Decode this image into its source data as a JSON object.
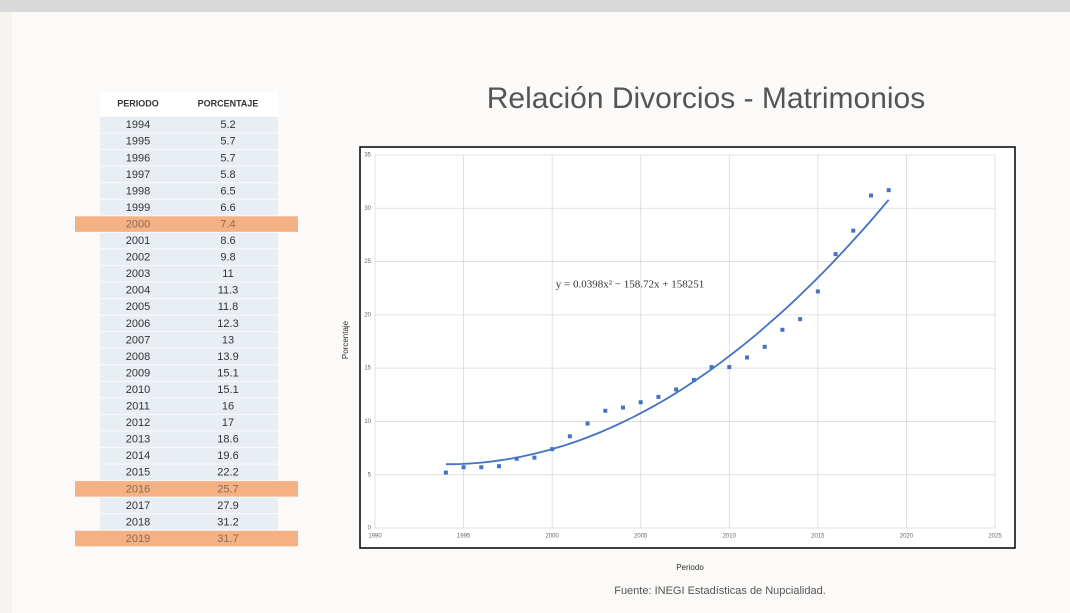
{
  "table": {
    "header": [
      "PERIODO",
      "PORCENTAJE"
    ],
    "rows": [
      [
        "1994",
        "5.2"
      ],
      [
        "1995",
        "5.7"
      ],
      [
        "1996",
        "5.7"
      ],
      [
        "1997",
        "5.8"
      ],
      [
        "1998",
        "6.5"
      ],
      [
        "1999",
        "6.6"
      ],
      [
        "2000",
        "7.4"
      ],
      [
        "2001",
        "8.6"
      ],
      [
        "2002",
        "9.8"
      ],
      [
        "2003",
        "11"
      ],
      [
        "2004",
        "11.3"
      ],
      [
        "2005",
        "11.8"
      ],
      [
        "2006",
        "12.3"
      ],
      [
        "2007",
        "13"
      ],
      [
        "2008",
        "13.9"
      ],
      [
        "2009",
        "15.1"
      ],
      [
        "2010",
        "15.1"
      ],
      [
        "2011",
        "16"
      ],
      [
        "2012",
        "17"
      ],
      [
        "2013",
        "18.6"
      ],
      [
        "2014",
        "19.6"
      ],
      [
        "2015",
        "22.2"
      ],
      [
        "2016",
        "25.7"
      ],
      [
        "2017",
        "27.9"
      ],
      [
        "2018",
        "31.2"
      ],
      [
        "2019",
        "31.7"
      ]
    ],
    "highlighted_rows": [
      6,
      22,
      25
    ]
  },
  "chart_data": {
    "type": "scatter",
    "title": "Relación Divorcios - Matrimonios",
    "x": [
      1994,
      1995,
      1996,
      1997,
      1998,
      1999,
      2000,
      2001,
      2002,
      2003,
      2004,
      2005,
      2006,
      2007,
      2008,
      2009,
      2010,
      2011,
      2012,
      2013,
      2014,
      2015,
      2016,
      2017,
      2018,
      2019
    ],
    "values": [
      5.2,
      5.7,
      5.7,
      5.8,
      6.5,
      6.6,
      7.4,
      8.6,
      9.8,
      11,
      11.3,
      11.8,
      12.3,
      13,
      13.9,
      15.1,
      15.1,
      16,
      17,
      18.6,
      19.6,
      22.2,
      25.7,
      27.9,
      31.2,
      31.7
    ],
    "color": "#4472c4",
    "trendline": "polynomial",
    "annotation": "y = 0.0398x² − 158.72x + 158251",
    "xlabel": "Periodo",
    "ylabel": "Porcentaje",
    "xlim": [
      1990,
      2025
    ],
    "xticks": [
      1990,
      1995,
      2000,
      2005,
      2010,
      2015,
      2020,
      2025
    ],
    "ylim": [
      0,
      35
    ],
    "yticks": [
      0,
      5,
      10,
      15,
      20,
      25,
      30,
      35
    ],
    "grid": true,
    "source": "Fuente: INEGI Estadísticas de Nupcialidad."
  }
}
